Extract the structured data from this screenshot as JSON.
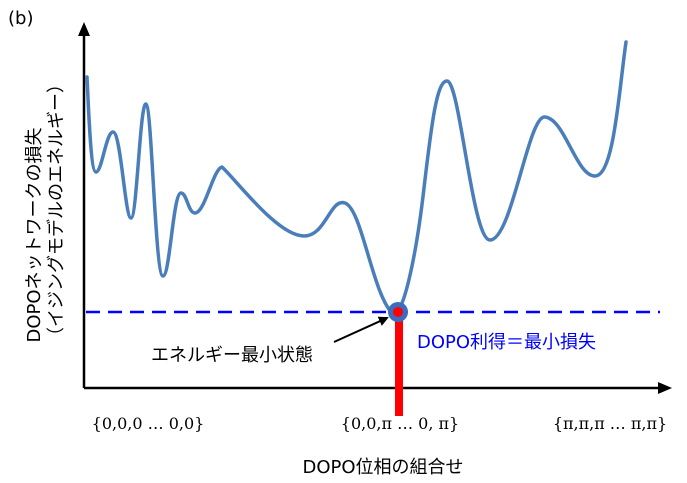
{
  "panel_label": "(b)",
  "y_axis_label_line1": "DOPOネットワークの損失",
  "y_axis_label_line2": "（イジングモデルのエネルギー）",
  "x_axis_label": "DOPO位相の組合せ",
  "x_tick_labels": [
    "{0,0,0 … 0,0}",
    "{0,0,π … 0, π}",
    "{π,π,π … π,π}"
  ],
  "annotation_min_state": "エネルギー最小状態",
  "annotation_dopo_gain": "DOPO利得＝最小損失",
  "colors": {
    "curve": "#4a7ebb",
    "threshold_line": "#0000ff",
    "min_marker_outer": "#3b6cc0",
    "min_marker_inner": "#ff0000",
    "gain_bar": "#ff0000",
    "gain_text": "#0000ff",
    "axis": "#000000"
  }
}
